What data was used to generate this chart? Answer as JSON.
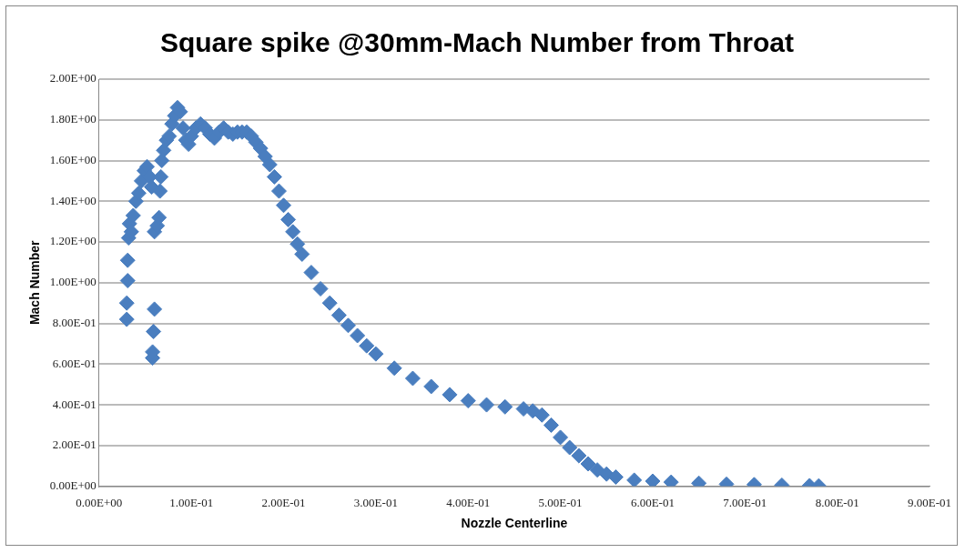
{
  "chart_data": {
    "type": "scatter",
    "title": "Square spike @30mm-Mach Number from Throat",
    "xlabel": "Nozzle Centerline",
    "ylabel": "Mach Number",
    "marker": "diamond",
    "grid": "y",
    "legend": false,
    "xlim": [
      0,
      0.9
    ],
    "xticks": [
      {
        "value": 0,
        "label": "0.00E+00"
      },
      {
        "value": 0.1,
        "label": "1.00E-01"
      },
      {
        "value": 0.2,
        "label": "2.00E-01"
      },
      {
        "value": 0.3,
        "label": "3.00E-01"
      },
      {
        "value": 0.4,
        "label": "4.00E-01"
      },
      {
        "value": 0.5,
        "label": "5.00E-01"
      },
      {
        "value": 0.6,
        "label": "6.00E-01"
      },
      {
        "value": 0.7,
        "label": "7.00E-01"
      },
      {
        "value": 0.8,
        "label": "8.00E-01"
      },
      {
        "value": 0.9,
        "label": "9.00E-01"
      }
    ],
    "ylim": [
      0,
      2
    ],
    "yticks": [
      {
        "value": 0,
        "label": "0.00E+00"
      },
      {
        "value": 0.2,
        "label": "2.00E-01"
      },
      {
        "value": 0.4,
        "label": "4.00E-01"
      },
      {
        "value": 0.6,
        "label": "6.00E-01"
      },
      {
        "value": 0.8,
        "label": "8.00E-01"
      },
      {
        "value": 1,
        "label": "1.00E+00"
      },
      {
        "value": 1.2,
        "label": "1.20E+00"
      },
      {
        "value": 1.4,
        "label": "1.40E+00"
      },
      {
        "value": 1.6,
        "label": "1.60E+00"
      },
      {
        "value": 1.8,
        "label": "1.80E+00"
      },
      {
        "value": 2,
        "label": "2.00E+00"
      }
    ],
    "series": [
      {
        "color": "#4a7ebf",
        "x": [
          0.03,
          0.03,
          0.031,
          0.031,
          0.032,
          0.033,
          0.035,
          0.037,
          0.04,
          0.043,
          0.046,
          0.049,
          0.052,
          0.055,
          0.057,
          0.058,
          0.058,
          0.059,
          0.06,
          0.06,
          0.063,
          0.065,
          0.066,
          0.067,
          0.068,
          0.07,
          0.073,
          0.076,
          0.079,
          0.082,
          0.085,
          0.088,
          0.091,
          0.094,
          0.097,
          0.1,
          0.105,
          0.11,
          0.115,
          0.12,
          0.125,
          0.13,
          0.135,
          0.14,
          0.145,
          0.15,
          0.155,
          0.16,
          0.165,
          0.17,
          0.175,
          0.18,
          0.185,
          0.19,
          0.195,
          0.2,
          0.205,
          0.21,
          0.215,
          0.22,
          0.23,
          0.24,
          0.25,
          0.26,
          0.27,
          0.28,
          0.29,
          0.3,
          0.32,
          0.34,
          0.36,
          0.38,
          0.4,
          0.42,
          0.44,
          0.46,
          0.47,
          0.48,
          0.49,
          0.5,
          0.51,
          0.52,
          0.53,
          0.54,
          0.55,
          0.56,
          0.58,
          0.6,
          0.62,
          0.65,
          0.68,
          0.71,
          0.74,
          0.77,
          0.78
        ],
        "values": [
          0.82,
          0.9,
          1.01,
          1.11,
          1.22,
          1.29,
          1.25,
          1.33,
          1.4,
          1.44,
          1.5,
          1.55,
          1.57,
          1.52,
          1.47,
          0.63,
          0.66,
          0.76,
          0.87,
          1.25,
          1.28,
          1.32,
          1.45,
          1.52,
          1.6,
          1.65,
          1.7,
          1.72,
          1.78,
          1.82,
          1.86,
          1.84,
          1.76,
          1.7,
          1.68,
          1.72,
          1.76,
          1.78,
          1.76,
          1.73,
          1.71,
          1.74,
          1.76,
          1.74,
          1.73,
          1.74,
          1.74,
          1.74,
          1.72,
          1.69,
          1.66,
          1.62,
          1.58,
          1.52,
          1.45,
          1.38,
          1.31,
          1.25,
          1.19,
          1.14,
          1.05,
          0.97,
          0.9,
          0.84,
          0.79,
          0.74,
          0.69,
          0.65,
          0.58,
          0.53,
          0.49,
          0.45,
          0.42,
          0.4,
          0.39,
          0.38,
          0.37,
          0.35,
          0.3,
          0.24,
          0.19,
          0.15,
          0.11,
          0.08,
          0.06,
          0.045,
          0.03,
          0.025,
          0.02,
          0.015,
          0.01,
          0.008,
          0.005,
          0.003,
          0.002
        ]
      }
    ]
  }
}
